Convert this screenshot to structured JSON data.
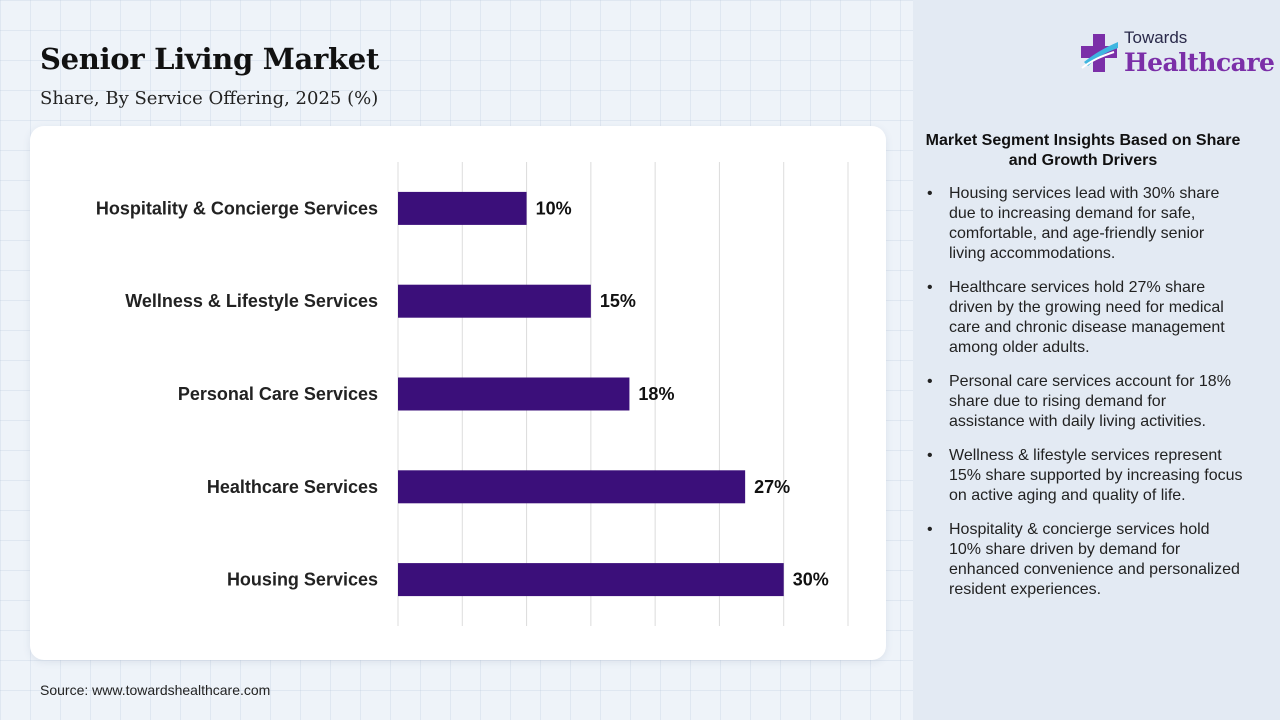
{
  "header": {
    "title": "Senior Living Market",
    "subtitle": "Share, By Service Offering, 2025 (%)"
  },
  "logo": {
    "line1": "Towards",
    "line2": "Healthcare",
    "icon": "cross-icon"
  },
  "source": "Source: www.towardshealthcare.com",
  "colors": {
    "bar": "#3b0f7a",
    "logo_accent": "#7b2fa8",
    "gridline": "#dcdcdc"
  },
  "chart_data": {
    "type": "bar",
    "orientation": "horizontal",
    "categories": [
      "Hospitality & Concierge Services",
      "Wellness & Lifestyle Services",
      "Personal Care Services",
      "Healthcare Services",
      "Housing Services"
    ],
    "values": [
      10,
      15,
      18,
      27,
      30
    ],
    "value_labels": [
      "10%",
      "15%",
      "18%",
      "27%",
      "30%"
    ],
    "xlim": [
      0,
      35
    ],
    "grid": true,
    "title": "Senior Living Market",
    "subtitle": "Share, By Service Offering, 2025 (%)"
  },
  "insights": {
    "heading": "Market Segment Insights Based on Share and Growth Drivers",
    "items": [
      "Housing services lead with 30% share due to increasing demand for safe, comfortable, and age-friendly senior living accommodations.",
      "Healthcare services hold 27% share driven by the growing need for medical care and chronic disease management among older adults.",
      "Personal care services account for 18% share due to rising demand for assistance with daily living activities.",
      "Wellness & lifestyle services represent 15% share supported by increasing focus on active aging and quality of life.",
      "Hospitality & concierge services hold 10% share driven by demand for enhanced convenience and personalized resident experiences."
    ]
  }
}
